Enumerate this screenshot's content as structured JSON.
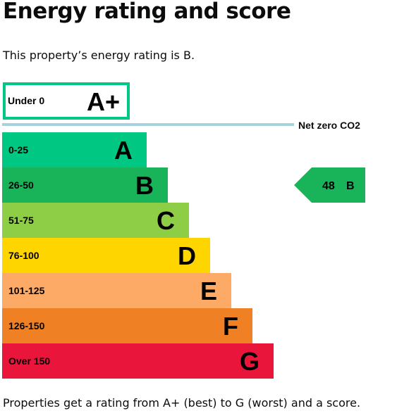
{
  "header": {
    "title": "Energy rating and score",
    "intro": "This property’s energy rating is B."
  },
  "footer": {
    "text": "Properties get a rating from A+ (best) to G (worst) and a score."
  },
  "chart_data": {
    "type": "bar",
    "title": "",
    "categories": [
      "A+",
      "A",
      "B",
      "C",
      "D",
      "E",
      "F",
      "G"
    ],
    "bands": [
      {
        "letter": "A+",
        "range": "Under 0",
        "color": "#ffffff",
        "border": "#00c781",
        "text_color": "#000000"
      },
      {
        "letter": "A",
        "range": "0-25",
        "color": "#00c781",
        "text_color": "#000000"
      },
      {
        "letter": "B",
        "range": "26-50",
        "color": "#19b459",
        "text_color": "#000000"
      },
      {
        "letter": "C",
        "range": "51-75",
        "color": "#8dce46",
        "text_color": "#000000"
      },
      {
        "letter": "D",
        "range": "76-100",
        "color": "#ffd500",
        "text_color": "#000000"
      },
      {
        "letter": "E",
        "range": "101-125",
        "color": "#fcaa65",
        "text_color": "#000000"
      },
      {
        "letter": "F",
        "range": "126-150",
        "color": "#ef8023",
        "text_color": "#000000"
      },
      {
        "letter": "G",
        "range": "Over 150",
        "color": "#e9153b",
        "text_color": "#000000"
      }
    ],
    "net_zero": {
      "label": "Net zero CO2",
      "color": "#a6d2dc"
    },
    "current": {
      "score": "48",
      "rating": "B",
      "band_index": 2,
      "color": "#19b459"
    }
  }
}
